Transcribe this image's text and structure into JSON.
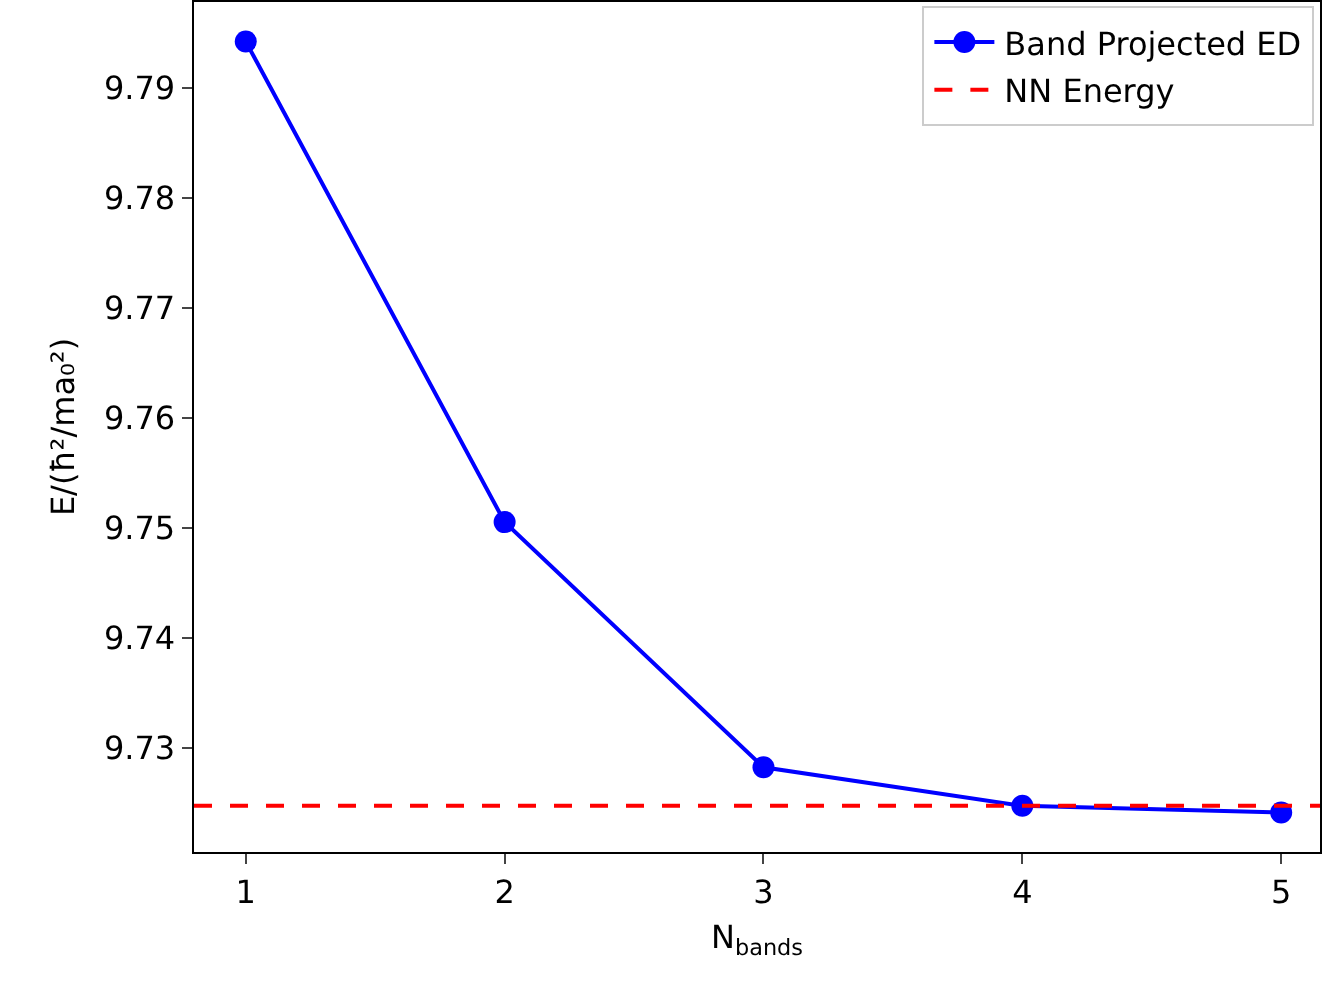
{
  "chart_data": {
    "type": "line",
    "xlabel": "N$_{bands}$",
    "ylabel": "E/(ħ²/ma₀²)",
    "x": [
      1,
      2,
      3,
      4,
      5
    ],
    "series": [
      {
        "name": "Band Projected ED",
        "color": "#0000ff",
        "values": [
          9.7942,
          9.7505,
          9.7282,
          9.7247,
          9.7241
        ]
      }
    ],
    "ref_lines": [
      {
        "axis": "y",
        "value": 9.7247,
        "label": "NN Energy",
        "color": "#ff0000",
        "line_style": "dashed"
      }
    ],
    "xlim": [
      0.8,
      5.15
    ],
    "xticks": [
      1,
      2,
      3,
      4,
      5
    ],
    "ylim": [
      9.7205,
      9.7978
    ],
    "yticks": [
      9.73,
      9.74,
      9.75,
      9.76,
      9.77,
      9.78,
      9.79
    ],
    "marker": "circle",
    "line_style": "solid",
    "grid": false,
    "legend": "top right"
  }
}
